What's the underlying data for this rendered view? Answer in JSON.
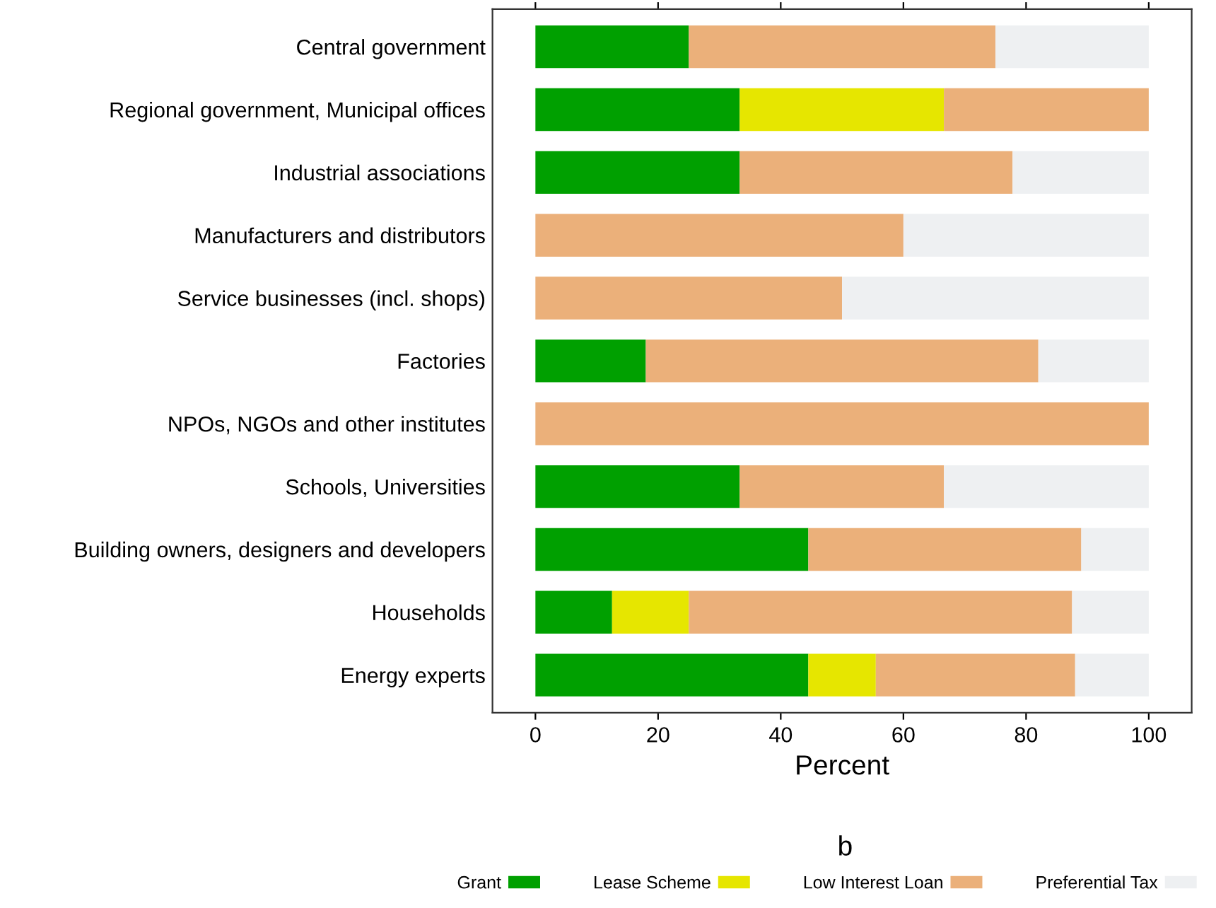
{
  "chart_data": {
    "type": "bar",
    "orientation": "horizontal",
    "stacked": true,
    "categories": [
      "Central government",
      "Regional government, Municipal offices",
      "Industrial associations",
      "Manufacturers and distributors",
      "Service businesses (incl. shops)",
      "Factories",
      "NPOs, NGOs and other institutes",
      "Schools, Universities",
      "Building owners, designers and developers",
      "Households",
      "Energy experts"
    ],
    "series": [
      {
        "name": "Grant",
        "color": "#00a000",
        "values": [
          25,
          33.3,
          33.3,
          0,
          0,
          18,
          0,
          33.3,
          44.5,
          12.5,
          44.5
        ]
      },
      {
        "name": "Lease Scheme",
        "color": "#e6e600",
        "values": [
          0,
          33.3,
          0,
          0,
          0,
          0,
          0,
          0,
          0,
          12.5,
          11
        ]
      },
      {
        "name": "Low Interest Loan",
        "color": "#ebb07a",
        "values": [
          50,
          33.4,
          44.5,
          60,
          50,
          64,
          100,
          33.3,
          44.5,
          62.5,
          32.5
        ]
      },
      {
        "name": "Preferential Tax",
        "color": "#eef0f2",
        "values": [
          25,
          0,
          22.2,
          40,
          50,
          18,
          0,
          33.4,
          11,
          12.5,
          12
        ]
      }
    ],
    "xlabel": "Percent",
    "xlim": [
      -7,
      107
    ],
    "xticks": [
      0,
      20,
      40,
      60,
      80,
      100
    ],
    "annotations": [
      "b"
    ],
    "legend": "bottom",
    "grid": false
  }
}
